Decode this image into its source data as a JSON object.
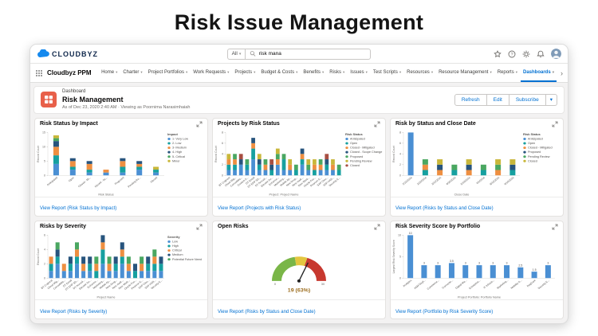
{
  "page_title": "Risk Issue Management",
  "colors": {
    "accent": "#0070d2",
    "dashboard_icon": "#e8604a"
  },
  "icons": {
    "chevron_down": "▾",
    "nav_more": "›"
  },
  "header": {
    "brand": "CLOUDBYZ",
    "search": {
      "scope": "All",
      "value": "risk mana"
    }
  },
  "nav": {
    "app_name": "Cloudbyz PPM",
    "tabs": [
      "Home",
      "Charter",
      "Project Portfolios",
      "Work Requests",
      "Projects",
      "Budget & Costs",
      "Benefits",
      "Risks",
      "Issues",
      "Test Scripts",
      "Resources",
      "Resource Management",
      "Reports",
      "Dashboards",
      "Project Templates"
    ],
    "active_tab": "Dashboards"
  },
  "dash_header": {
    "kicker": "Dashboard",
    "title": "Risk Management",
    "subtitle": "As of Dec 23, 2020 2:40 AM · Viewing as Poornima Narasimhaiah",
    "refresh_label": "Refresh",
    "edit_label": "Edit",
    "subscribe_label": "Subscribe"
  },
  "panels": [
    {
      "title": "Risk Status by Impact",
      "footer": "View Report (Risk Status by Impact)",
      "chart": {
        "type": "stacked_bar",
        "ylabel": "Record Count",
        "xlabel": "Risk Status",
        "legend_title": "Impact",
        "ylim": 15,
        "yticks": [
          0,
          5,
          10,
          15
        ],
        "categories": [
          "Anticipated",
          "Open",
          "Closed - Mi...",
          "Closed - Sc...",
          "Proposed",
          "Pending Re...",
          "Closed"
        ],
        "series": [
          {
            "name": "1- Very Low",
            "color": "#4a8fd3",
            "values": [
              4,
              2,
              1,
              1,
              1,
              2,
              1
            ]
          },
          {
            "name": "2- Low",
            "color": "#16a0a0",
            "values": [
              3,
              1,
              1,
              0,
              2,
              1,
              1
            ]
          },
          {
            "name": "3- Medium",
            "color": "#ee8f41",
            "values": [
              3,
              2,
              2,
              1,
              2,
              1,
              0
            ]
          },
          {
            "name": "4- High",
            "color": "#27547d",
            "values": [
              2,
              1,
              1,
              0,
              1,
              1,
              0
            ]
          },
          {
            "name": "5- Critical",
            "color": "#4aa761",
            "values": [
              1,
              0,
              0,
              0,
              0,
              0,
              0
            ]
          },
          {
            "name": "Minor",
            "color": "#c9b73a",
            "values": [
              1,
              0,
              0,
              0,
              0,
              0,
              1
            ]
          }
        ]
      }
    },
    {
      "title": "Projects by Risk Status",
      "footer": "View Report (Projects with Risk Status)",
      "chart": {
        "type": "stacked_bar",
        "ylabel": "Record Count",
        "xlabel": "Project: Project Name",
        "legend_title": "Risk Status",
        "ylim": 8,
        "yticks": [
          0,
          2,
          4,
          6,
          8
        ],
        "categories": [
          "BT Cognext",
          "Cloud Mig...",
          "ConsoliWa...",
          "Custom A...",
          "DT Email",
          "DT ERP SD...",
          "DT Annual...",
          "Elevate Su...",
          "Enhance...",
          "Marketing...",
          "Mobile Ap...",
          "New Drug...",
          "New mark...",
          "New Work...",
          "Oracle Fus...",
          "Pearson E...",
          "SAP Clou...",
          "SAP HAN...",
          "Security E..."
        ],
        "series": [
          {
            "name": "Anticipated",
            "color": "#4a8fd3",
            "values": [
              1,
              1,
              2,
              1,
              3,
              1,
              1,
              0,
              2,
              1,
              1,
              0,
              2,
              1,
              0,
              1,
              1,
              1,
              0
            ]
          },
          {
            "name": "Open",
            "color": "#16a0a0",
            "values": [
              1,
              1,
              0,
              1,
              2,
              1,
              0,
              1,
              0,
              2,
              0,
              1,
              1,
              0,
              1,
              0,
              1,
              0,
              1
            ]
          },
          {
            "name": "Closed - Mitigated",
            "color": "#ee8f41",
            "values": [
              1,
              1,
              0,
              0,
              1,
              0,
              1,
              0,
              1,
              0,
              1,
              0,
              1,
              0,
              1,
              1,
              0,
              1,
              0
            ]
          },
          {
            "name": "Closed - Scope Change",
            "color": "#27547d",
            "values": [
              0,
              0,
              1,
              0,
              1,
              1,
              0,
              1,
              0,
              0,
              0,
              0,
              1,
              0,
              0,
              0,
              1,
              0,
              0
            ]
          },
          {
            "name": "Proposed",
            "color": "#4aa761",
            "values": [
              0,
              1,
              0,
              1,
              0,
              0,
              1,
              0,
              1,
              1,
              0,
              1,
              0,
              1,
              0,
              1,
              0,
              0,
              1
            ]
          },
          {
            "name": "Pending Review",
            "color": "#c9b73a",
            "values": [
              1,
              0,
              0,
              0,
              0,
              1,
              0,
              0,
              1,
              0,
              1,
              0,
              0,
              1,
              1,
              0,
              0,
              1,
              0
            ]
          },
          {
            "name": "Closed",
            "color": "#a84f42",
            "values": [
              0,
              0,
              1,
              0,
              0,
              0,
              0,
              1,
              0,
              0,
              0,
              0,
              0,
              0,
              0,
              0,
              1,
              0,
              0
            ]
          }
        ]
      }
    },
    {
      "title": "Risk by Status and Close Date",
      "footer": "View Report (Risks by Status and Close Date)",
      "chart": {
        "type": "stacked_bar",
        "ylabel": "Record Count",
        "xlabel": "Close Date",
        "legend_title": "Risk Status",
        "ylim": 8,
        "yticks": [
          0,
          2,
          4,
          6,
          8
        ],
        "categories": [
          "2/21/2016",
          "2/22/2016",
          "3/12/2016",
          "4/30/2016",
          "5/14/2016",
          "6/1/2016",
          "8/13/2016",
          "9/14/2016"
        ],
        "series": [
          {
            "name": "Anticipated",
            "color": "#4a8fd3",
            "values": [
              8,
              0,
              0,
              0,
              0,
              0,
              0,
              0
            ]
          },
          {
            "name": "Open",
            "color": "#16a0a0",
            "values": [
              0,
              1,
              0,
              1,
              0,
              1,
              0,
              1
            ]
          },
          {
            "name": "Closed - Mitigated",
            "color": "#ee8f41",
            "values": [
              0,
              1,
              1,
              0,
              1,
              0,
              1,
              0
            ]
          },
          {
            "name": "Proposed",
            "color": "#27547d",
            "values": [
              0,
              0,
              1,
              0,
              1,
              0,
              0,
              1
            ]
          },
          {
            "name": "Pending Review",
            "color": "#4aa761",
            "values": [
              0,
              1,
              0,
              1,
              0,
              1,
              1,
              0
            ]
          },
          {
            "name": "Closed",
            "color": "#c9b73a",
            "values": [
              0,
              0,
              1,
              0,
              1,
              0,
              1,
              1
            ]
          }
        ]
      }
    },
    {
      "title": "Risks by Severity",
      "footer": "View Report (Risks by Severity)",
      "chart": {
        "type": "stacked_bar",
        "ylabel": "Record Count",
        "xlabel": "Project Name",
        "legend_title": "Severity",
        "ylim": 6,
        "yticks": [
          0,
          2,
          4,
          6
        ],
        "categories": [
          "BT Cognext",
          "Cloud Mig...",
          "ConsoliWa...",
          "DT Email",
          "DT ERP SD...",
          "DT Annual...",
          "Elevate Su...",
          "Enhance...",
          "Marketing...",
          "Mobile Ap...",
          "New Drug...",
          "New mark...",
          "New Work...",
          "Oracle Fus...",
          "Pearson E...",
          "SAP Clou...",
          "SAP HAN...",
          "Security E..."
        ],
        "series": [
          {
            "name": "Low",
            "color": "#4a8fd3",
            "values": [
              1,
              2,
              1,
              1,
              2,
              1,
              1,
              0,
              2,
              1,
              1,
              2,
              1,
              0,
              1,
              1,
              1,
              1
            ]
          },
          {
            "name": "High",
            "color": "#16a0a0",
            "values": [
              1,
              1,
              0,
              1,
              1,
              0,
              1,
              1,
              2,
              0,
              1,
              1,
              0,
              1,
              0,
              1,
              1,
              1
            ]
          },
          {
            "name": "Critical",
            "color": "#ee8f41",
            "values": [
              1,
              0,
              1,
              0,
              1,
              1,
              0,
              1,
              1,
              1,
              0,
              1,
              1,
              0,
              1,
              0,
              1,
              0
            ]
          },
          {
            "name": "Medium",
            "color": "#27547d",
            "values": [
              0,
              1,
              0,
              1,
              0,
              1,
              1,
              0,
              1,
              0,
              1,
              1,
              0,
              1,
              0,
              1,
              0,
              1
            ]
          },
          {
            "name": "Potential Future Need",
            "color": "#4aa761",
            "values": [
              0,
              1,
              0,
              0,
              1,
              0,
              0,
              1,
              0,
              1,
              0,
              0,
              1,
              0,
              1,
              0,
              1,
              0
            ]
          }
        ]
      }
    },
    {
      "title": "Open Risks",
      "footer": "View Report (Risks by Status and Close Date)",
      "chart": {
        "type": "gauge",
        "min": 0,
        "max": 30,
        "value": 19,
        "display": "19 (63%)",
        "min_label": "0",
        "max_label": "30",
        "bands": [
          {
            "to": 0.45,
            "color": "#7ab648"
          },
          {
            "to": 0.6,
            "color": "#e4c63f"
          },
          {
            "to": 1,
            "color": "#c7382f"
          }
        ]
      }
    },
    {
      "title": "Risk Severity Score by Portfolio",
      "footer": "View Report (Portfolio by Risk Severity Score)",
      "chart": {
        "type": "labeled_bar",
        "ylabel": "Largest Risk Severity Score",
        "xlabel": "Project Portfolio: Portfolio Name",
        "color": "#4a8fd3",
        "ylim": 10,
        "yticks": [
          0,
          5,
          10
        ],
        "categories": [
          "Analytics",
          "ASM Depl...",
          "Commerce...",
          "Connecte...",
          "Digital Ma...",
          "Enterprise...",
          "IT Infrastr...",
          "Marketing...",
          "Mobility S...",
          "RegCare",
          "Security E..."
        ],
        "values": [
          10,
          3,
          3,
          3.5,
          3,
          3,
          3,
          3,
          2.5,
          1.5,
          3
        ],
        "labels": [
          "10",
          "3",
          "3",
          "3.5",
          "3",
          "3",
          "3",
          "3",
          "2.5",
          "1.5",
          "3"
        ]
      }
    }
  ]
}
